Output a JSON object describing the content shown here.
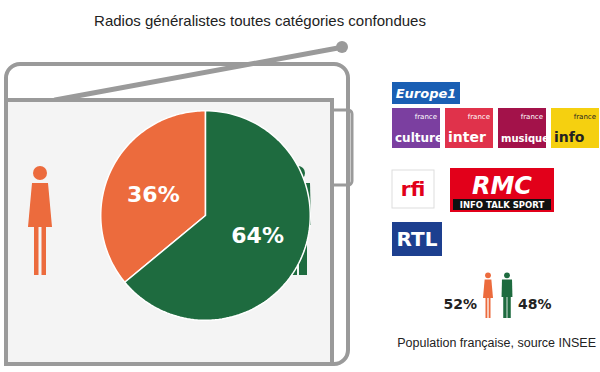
{
  "chart_data": {
    "type": "pie",
    "title": "Radios généralistes toutes catégories confondues",
    "values": [
      36,
      64
    ],
    "value_labels": [
      "36%",
      "64%"
    ],
    "colors": [
      "#ec6b3d",
      "#1e6b3f"
    ],
    "data_labels": true,
    "annotations": {
      "stations": [
        {
          "lines": [
            "Europe1"
          ],
          "color": "#1a5fb4"
        },
        {
          "lines": [
            "france",
            "culture"
          ],
          "color": "#7b3fa0"
        },
        {
          "lines": [
            "france",
            "inter"
          ],
          "color": "#e0324b"
        },
        {
          "lines": [
            "france",
            "musique"
          ],
          "color": "#a3124a"
        },
        {
          "lines": [
            "france",
            "info"
          ],
          "color": "#f5d010"
        },
        {
          "lines": [
            "rfi"
          ],
          "color": "#e2001a"
        },
        {
          "lines": [
            "RMC",
            "INFO TALK SPORT"
          ],
          "color": "#e2001a"
        },
        {
          "lines": [
            "RTL"
          ],
          "color": "#1d3f8f"
        }
      ],
      "population": {
        "values": [
          52,
          48
        ],
        "value_labels": [
          "52%",
          "48%"
        ],
        "colors": [
          "#ec6b3d",
          "#1e6b3f"
        ],
        "caption": "Population française, source INSEE"
      }
    }
  }
}
